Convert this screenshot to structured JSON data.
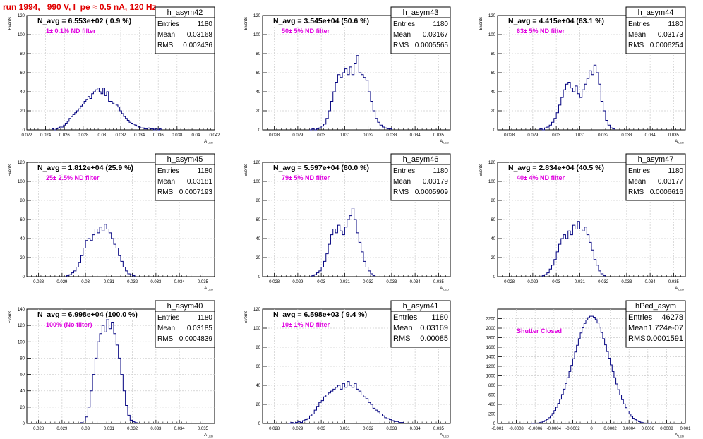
{
  "run_title": "run 1994,   990 V, I_pe ≈ 0.5 nA, 120 Hz",
  "colors": {
    "hist": "#00007f",
    "annotation": "#e000e0",
    "title": "#e00000",
    "grid": "#cccccc",
    "frame": "#000000"
  },
  "stats_labels": {
    "entries": "Entries",
    "mean": "Mean",
    "rms": "RMS"
  },
  "chart_data": [
    {
      "type": "histogram",
      "name": "h_asym42",
      "title": "N_avg = 6.553e+02 ( 0.9 %)",
      "annotation": "1± 0.1% ND filter",
      "ylabel": "Events",
      "xlabel": "A_LED",
      "entries": "1180",
      "mean": "0.03168",
      "rms": "0.002436",
      "grid": true,
      "xlim": [
        0.022,
        0.042
      ],
      "ylim": [
        0,
        120
      ],
      "xticks": [
        "0.022",
        "0.024",
        "0.026",
        "0.028",
        "0.03",
        "0.032",
        "0.034",
        "0.036",
        "0.038",
        "0.04",
        "0.042"
      ],
      "yticks": [
        "0",
        "20",
        "40",
        "60",
        "80",
        "100",
        "120"
      ],
      "bins_x0": 0.0247,
      "bin_width": 0.0002,
      "values": [
        1,
        0,
        1,
        2,
        3,
        3,
        5,
        7,
        9,
        12,
        14,
        16,
        18,
        20,
        22,
        25,
        27,
        30,
        32,
        35,
        33,
        38,
        40,
        42,
        44,
        40,
        38,
        44,
        36,
        40,
        30,
        30,
        28,
        27,
        26,
        24,
        20,
        17,
        14,
        12,
        10,
        8,
        7,
        6,
        5,
        4,
        3,
        2,
        2,
        1,
        1,
        2,
        1,
        1,
        0,
        1,
        0,
        1
      ]
    },
    {
      "type": "histogram",
      "name": "h_asym43",
      "title": "N_avg = 3.545e+04 (50.6 %)",
      "annotation": "50± 5% ND filter",
      "ylabel": "Events",
      "xlabel": "A_LED",
      "entries": "1180",
      "mean": "0.03167",
      "rms": "0.0005565",
      "grid": true,
      "xlim": [
        0.0275,
        0.0355
      ],
      "ylim": [
        0,
        120
      ],
      "xticks": [
        "0.028",
        "0.029",
        "0.03",
        "0.031",
        "0.032",
        "0.033",
        "0.034",
        "0.035"
      ],
      "yticks": [
        "0",
        "20",
        "40",
        "60",
        "80",
        "100",
        "120"
      ],
      "bins_x0": 0.0295,
      "bin_width": 0.0001,
      "values": [
        0,
        1,
        0,
        1,
        2,
        4,
        6,
        12,
        20,
        30,
        40,
        50,
        58,
        55,
        60,
        64,
        58,
        66,
        58,
        70,
        78,
        60,
        58,
        55,
        52,
        40,
        30,
        20,
        12,
        8,
        5,
        3,
        2,
        1,
        1
      ]
    },
    {
      "type": "histogram",
      "name": "h_asym44",
      "title": "N_avg = 4.415e+04 (63.1 %)",
      "annotation": "63± 5% ND filter",
      "ylabel": "Events",
      "xlabel": "A_LED",
      "entries": "1180",
      "mean": "0.03173",
      "rms": "0.0006254",
      "grid": true,
      "xlim": [
        0.0275,
        0.0355
      ],
      "ylim": [
        0,
        120
      ],
      "xticks": [
        "0.028",
        "0.029",
        "0.03",
        "0.031",
        "0.032",
        "0.033",
        "0.034",
        "0.035"
      ],
      "yticks": [
        "0",
        "20",
        "40",
        "60",
        "80",
        "100",
        "120"
      ],
      "bins_x0": 0.0293,
      "bin_width": 0.0001,
      "values": [
        1,
        0,
        2,
        3,
        5,
        8,
        12,
        18,
        26,
        34,
        42,
        48,
        50,
        44,
        40,
        46,
        38,
        34,
        42,
        48,
        54,
        62,
        58,
        68,
        60,
        48,
        30,
        20,
        10,
        5,
        2,
        1
      ]
    },
    {
      "type": "histogram",
      "name": "h_asym45",
      "title": "N_avg = 1.812e+04 (25.9 %)",
      "annotation": "25± 2.5% ND filter",
      "ylabel": "Events",
      "xlabel": "A_LED",
      "entries": "1180",
      "mean": "0.03181",
      "rms": "0.0007193",
      "grid": true,
      "xlim": [
        0.0275,
        0.0355
      ],
      "ylim": [
        0,
        120
      ],
      "xticks": [
        "0.028",
        "0.029",
        "0.03",
        "0.031",
        "0.032",
        "0.033",
        "0.034",
        "0.035"
      ],
      "yticks": [
        "0",
        "20",
        "40",
        "60",
        "80",
        "100",
        "120"
      ],
      "bins_x0": 0.0292,
      "bin_width": 0.0001,
      "values": [
        1,
        2,
        4,
        6,
        10,
        15,
        22,
        30,
        38,
        40,
        38,
        44,
        50,
        46,
        52,
        48,
        55,
        50,
        46,
        40,
        34,
        30,
        22,
        16,
        10,
        6,
        3,
        2,
        1
      ]
    },
    {
      "type": "histogram",
      "name": "h_asym46",
      "title": "N_avg = 5.597e+04 (80.0 %)",
      "annotation": "79± 5% ND filter",
      "ylabel": "Events",
      "xlabel": "A_LED",
      "entries": "1180",
      "mean": "0.03179",
      "rms": "0.0005909",
      "grid": true,
      "xlim": [
        0.0275,
        0.0355
      ],
      "ylim": [
        0,
        120
      ],
      "xticks": [
        "0.028",
        "0.029",
        "0.03",
        "0.031",
        "0.032",
        "0.033",
        "0.034",
        "0.035"
      ],
      "yticks": [
        "0",
        "20",
        "40",
        "60",
        "80",
        "100",
        "120"
      ],
      "bins_x0": 0.0296,
      "bin_width": 0.0001,
      "values": [
        1,
        2,
        4,
        6,
        10,
        16,
        24,
        34,
        44,
        50,
        46,
        54,
        48,
        44,
        52,
        60,
        64,
        72,
        60,
        46,
        36,
        26,
        16,
        10,
        6,
        3,
        1
      ]
    },
    {
      "type": "histogram",
      "name": "h_asym47",
      "title": "N_avg = 2.834e+04 (40.5 %)",
      "annotation": "40± 4% ND filter",
      "ylabel": "Events",
      "xlabel": "A_LED",
      "entries": "1180",
      "mean": "0.03177",
      "rms": "0.0006616",
      "grid": true,
      "xlim": [
        0.0275,
        0.0355
      ],
      "ylim": [
        0,
        120
      ],
      "xticks": [
        "0.028",
        "0.029",
        "0.03",
        "0.031",
        "0.032",
        "0.033",
        "0.034",
        "0.035"
      ],
      "yticks": [
        "0",
        "20",
        "40",
        "60",
        "80",
        "100",
        "120"
      ],
      "bins_x0": 0.0294,
      "bin_width": 0.0001,
      "values": [
        1,
        2,
        4,
        8,
        12,
        18,
        26,
        34,
        40,
        44,
        40,
        48,
        44,
        54,
        50,
        58,
        50,
        48,
        52,
        44,
        36,
        28,
        18,
        12,
        6,
        3,
        1
      ]
    },
    {
      "type": "histogram",
      "name": "h_asym40",
      "title": "N_avg = 6.998e+04 (100.0 %)",
      "annotation": "100% (No filter)",
      "ylabel": "Events",
      "xlabel": "A_LED",
      "entries": "1180",
      "mean": "0.03185",
      "rms": "0.0004839",
      "grid": true,
      "xlim": [
        0.0275,
        0.0355
      ],
      "ylim": [
        0,
        140
      ],
      "xticks": [
        "0.028",
        "0.029",
        "0.03",
        "0.031",
        "0.032",
        "0.033",
        "0.034",
        "0.035"
      ],
      "yticks": [
        "0",
        "20",
        "40",
        "60",
        "80",
        "100",
        "120",
        "140"
      ],
      "bins_x0": 0.0298,
      "bin_width": 0.0001,
      "values": [
        1,
        3,
        8,
        20,
        40,
        60,
        80,
        100,
        110,
        120,
        112,
        128,
        116,
        124,
        110,
        96,
        80,
        60,
        40,
        22,
        10,
        4,
        2,
        1
      ]
    },
    {
      "type": "histogram",
      "name": "h_asym41",
      "title": "N_avg = 6.598e+03 ( 9.4 %)",
      "annotation": "10± 1% ND filter",
      "ylabel": "Events",
      "xlabel": "A_LED",
      "entries": "1180",
      "mean": "0.03169",
      "rms": "0.00085",
      "grid": true,
      "xlim": [
        0.0275,
        0.0355
      ],
      "ylim": [
        0,
        120
      ],
      "xticks": [
        "0.028",
        "0.029",
        "0.03",
        "0.031",
        "0.032",
        "0.033",
        "0.034",
        "0.035"
      ],
      "yticks": [
        "0",
        "20",
        "40",
        "60",
        "80",
        "100",
        "120"
      ],
      "bins_x0": 0.0286,
      "bin_width": 0.0001,
      "values": [
        0,
        1,
        0,
        1,
        2,
        1,
        3,
        4,
        5,
        8,
        10,
        14,
        18,
        22,
        24,
        28,
        30,
        32,
        34,
        36,
        38,
        40,
        36,
        42,
        38,
        44,
        40,
        38,
        42,
        36,
        34,
        30,
        28,
        26,
        22,
        20,
        16,
        14,
        12,
        10,
        8,
        6,
        5,
        4,
        3,
        2,
        2,
        1,
        1
      ]
    },
    {
      "type": "histogram",
      "name": "hPed_asym",
      "title": "",
      "annotation": "Shutter Closed",
      "ylabel": "",
      "xlabel": "A_LED",
      "entries": "46278",
      "mean": "1.724e-07",
      "rms": "0.0001591",
      "grid": true,
      "xlim": [
        -0.001,
        0.001
      ],
      "ylim": [
        0,
        2400
      ],
      "xticks": [
        "-0.001",
        "-0.0008",
        "-0.0006",
        "-0.0004",
        "-0.0002",
        "0",
        "0.0002",
        "0.0004",
        "0.0006",
        "0.0008",
        "0.001"
      ],
      "yticks": [
        "0",
        "200",
        "400",
        "600",
        "800",
        "1000",
        "1200",
        "1400",
        "1600",
        "1800",
        "2000",
        "2200"
      ],
      "bins_x0": -0.00064,
      "bin_width": 2e-05,
      "values": [
        2,
        4,
        6,
        10,
        18,
        28,
        40,
        60,
        86,
        120,
        160,
        210,
        270,
        340,
        420,
        510,
        610,
        720,
        840,
        960,
        1090,
        1220,
        1360,
        1500,
        1640,
        1780,
        1900,
        2010,
        2100,
        2170,
        2220,
        2250,
        2250,
        2230,
        2180,
        2110,
        2020,
        1910,
        1780,
        1650,
        1510,
        1370,
        1230,
        1090,
        960,
        830,
        710,
        600,
        500,
        410,
        330,
        260,
        200,
        150,
        110,
        80,
        56,
        38,
        26,
        16,
        10,
        6,
        4,
        2
      ]
    }
  ]
}
